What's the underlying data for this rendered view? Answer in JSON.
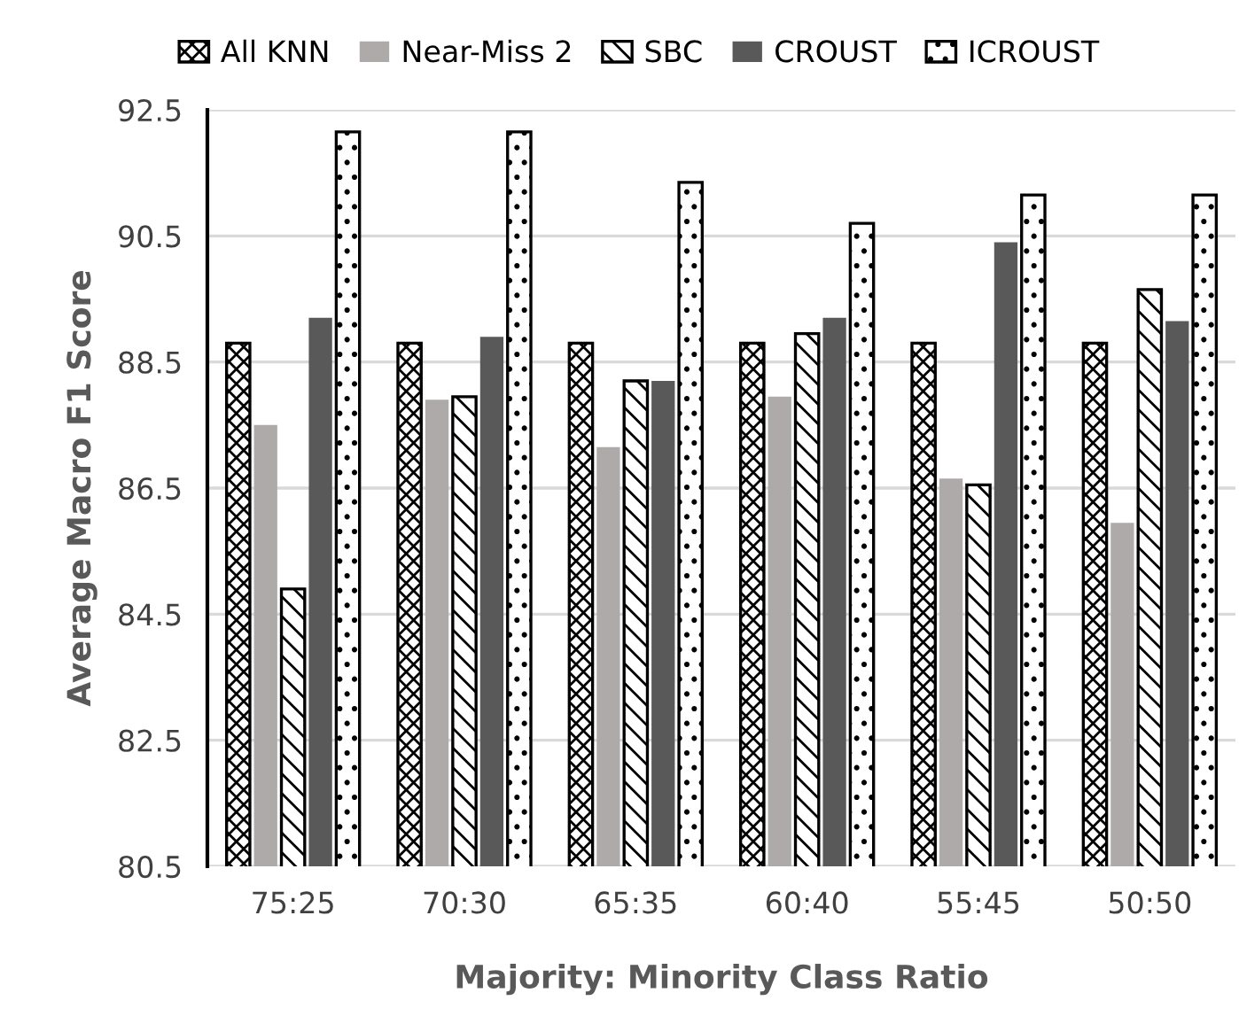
{
  "chart_data": {
    "type": "bar",
    "xlabel": "Majority: Minority Class Ratio",
    "ylabel": "Average Macro F1 Score",
    "categories": [
      "75:25",
      "70:30",
      "65:35",
      "60:40",
      "55:45",
      "50:50"
    ],
    "series": [
      {
        "name": "All KNN",
        "color": "#000000",
        "values": [
          88.8,
          88.8,
          88.8,
          88.8,
          88.8,
          88.8
        ]
      },
      {
        "name": "Near-Miss 2",
        "color": "#aeaaaa",
        "values": [
          87.5,
          87.9,
          87.15,
          87.95,
          86.65,
          85.95
        ]
      },
      {
        "name": "SBC",
        "color": "#000000",
        "values": [
          84.9,
          87.95,
          88.2,
          88.95,
          86.55,
          89.65
        ]
      },
      {
        "name": "CROUST",
        "color": "#595959",
        "values": [
          89.2,
          88.9,
          88.2,
          89.2,
          90.4,
          89.15
        ]
      },
      {
        "name": "ICROUST",
        "color": "#000000",
        "values": [
          92.15,
          92.15,
          91.35,
          90.7,
          91.15,
          91.15
        ]
      }
    ],
    "ylim": [
      80.5,
      92.5
    ],
    "yticks": [
      80.5,
      82.5,
      84.5,
      86.5,
      88.5,
      90.5,
      92.5
    ],
    "grid": "y",
    "legend": "top"
  }
}
